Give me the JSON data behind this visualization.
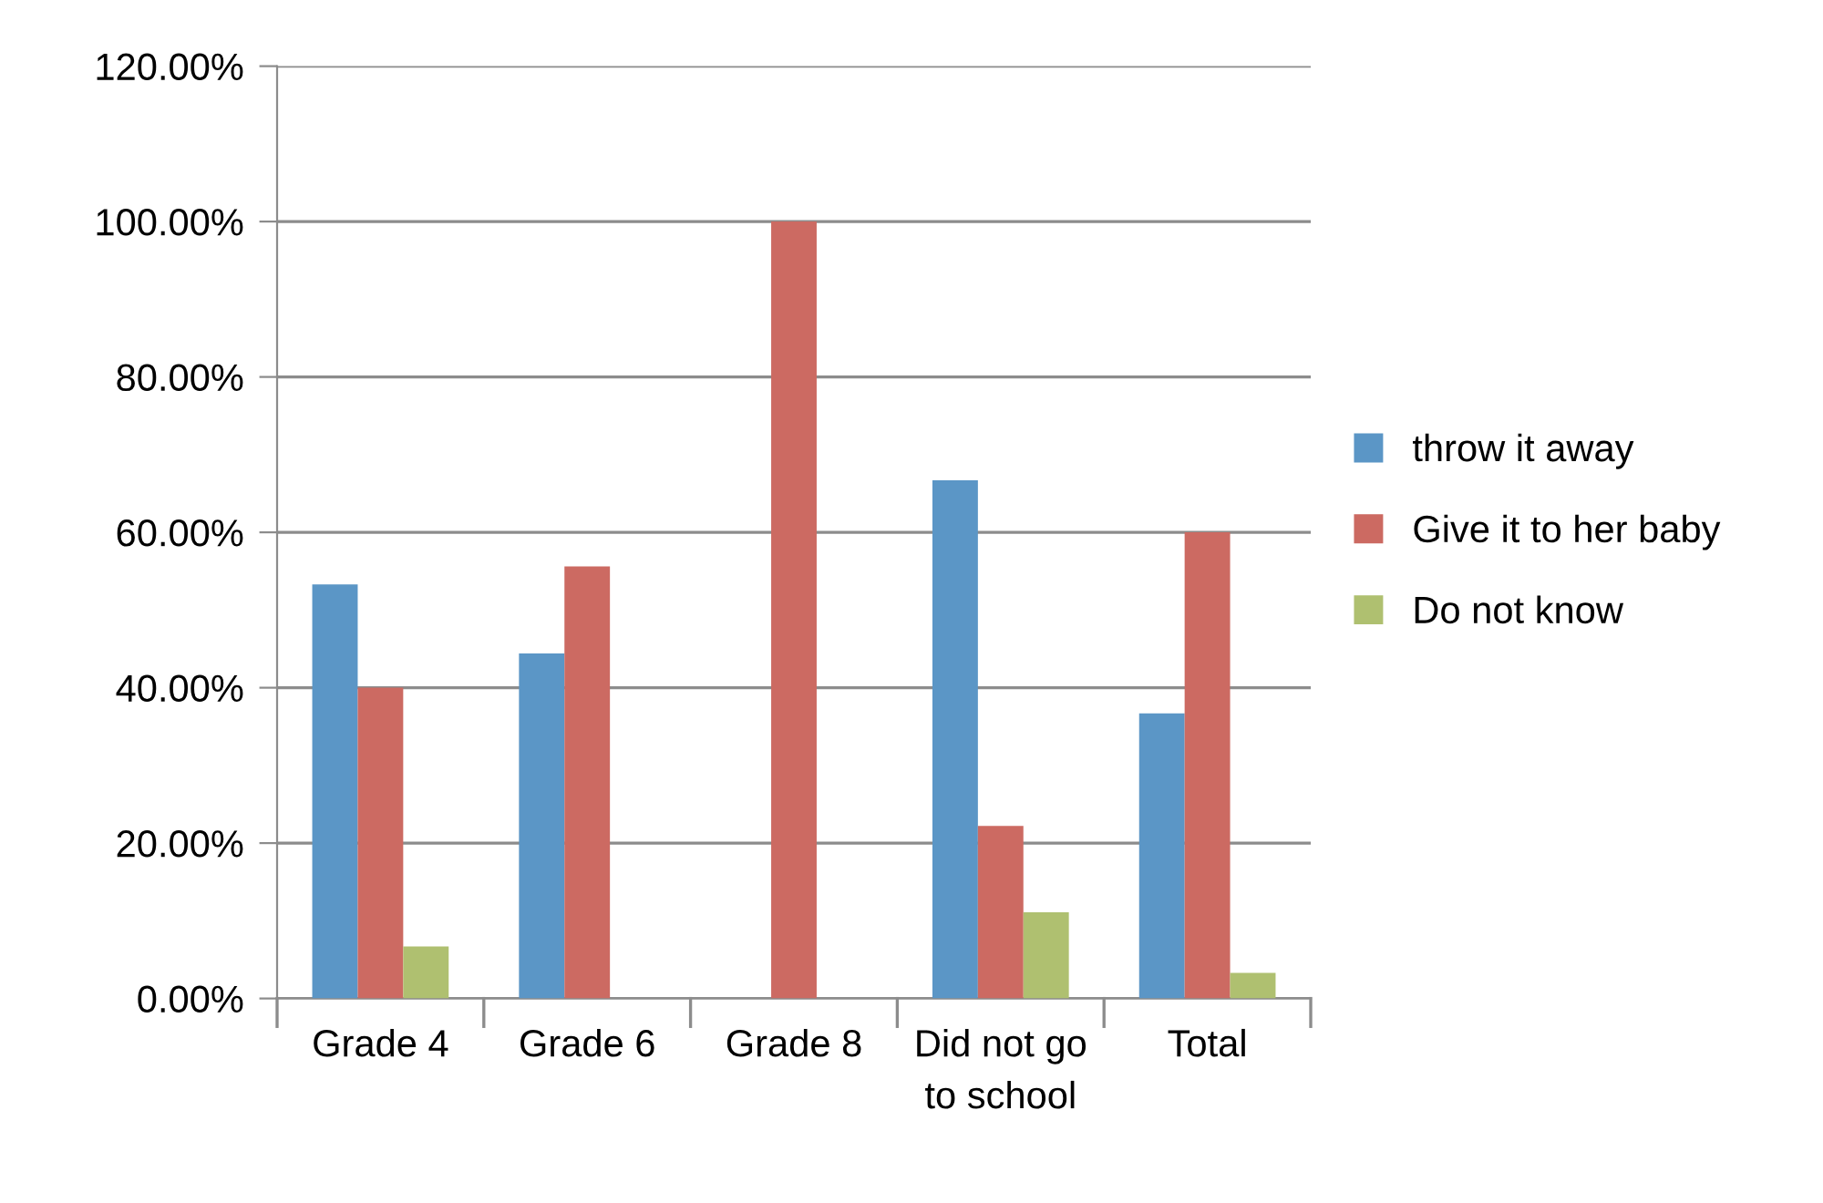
{
  "chart_data": {
    "type": "bar",
    "categories": [
      "Grade 4",
      "Grade 6",
      "Grade 8",
      "Did not go\nto school",
      "Total"
    ],
    "series": [
      {
        "name": "throw it away",
        "color": "#5b96c6",
        "values": [
          53.3,
          44.4,
          0,
          66.7,
          36.7
        ]
      },
      {
        "name": "Give it to her baby",
        "color": "#cc6a62",
        "values": [
          40.0,
          55.6,
          100.0,
          22.2,
          60.0
        ]
      },
      {
        "name": "Do not know",
        "color": "#afc070",
        "values": [
          6.7,
          0,
          0,
          11.1,
          3.3
        ]
      }
    ],
    "ylim": [
      0,
      120
    ],
    "yticks": [
      {
        "value": 0,
        "label": "0.00%"
      },
      {
        "value": 20,
        "label": "20.00%"
      },
      {
        "value": 40,
        "label": "40.00%"
      },
      {
        "value": 60,
        "label": "60.00%"
      },
      {
        "value": 80,
        "label": "80.00%"
      },
      {
        "value": 100,
        "label": "100.00%"
      },
      {
        "value": 120,
        "label": "120.00%"
      }
    ],
    "grid": "y",
    "legend": "right"
  }
}
